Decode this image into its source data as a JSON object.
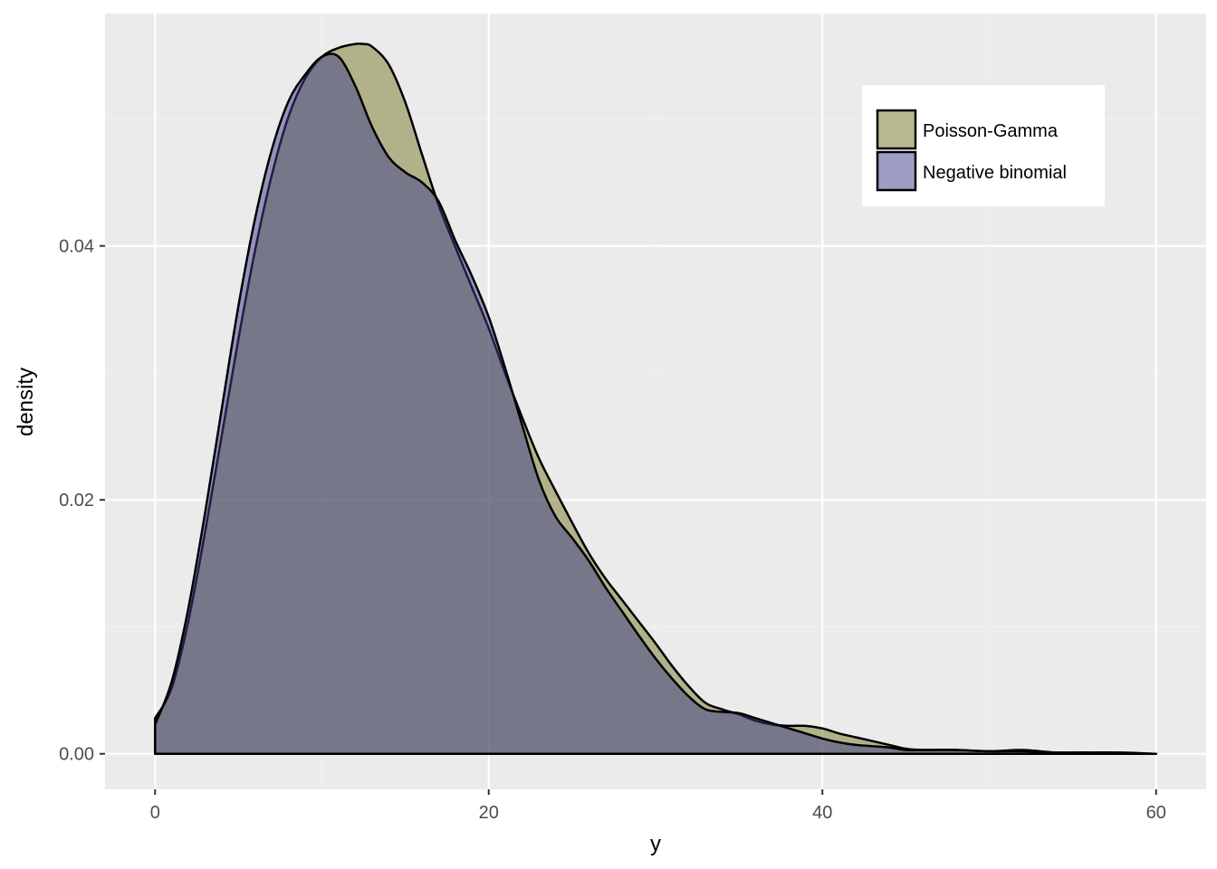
{
  "chart_data": {
    "type": "area",
    "chart_subtype": "overlapping density plot",
    "xlabel": "y",
    "ylabel": "density",
    "xlim": [
      -3,
      63
    ],
    "ylim": [
      -0.0028,
      0.0583
    ],
    "x_ticks": [
      0,
      20,
      40,
      60
    ],
    "y_ticks": [
      0.0,
      0.02,
      0.04
    ],
    "x_tick_labels": [
      "0",
      "20",
      "40",
      "60"
    ],
    "y_tick_labels": [
      "0.00",
      "0.02",
      "0.04"
    ],
    "grid": true,
    "legend_position": "top-right",
    "background": "#EBEBEB",
    "series": [
      {
        "name": "Poisson-Gamma",
        "fill": "#8C8C4A",
        "fill_opacity": 0.6,
        "x": [
          0,
          1,
          2,
          3,
          4,
          5,
          6,
          7,
          8,
          9,
          10,
          11,
          12,
          12.5,
          13,
          14,
          15,
          16,
          17,
          18,
          19,
          20,
          21,
          22,
          23,
          24,
          25,
          26,
          27,
          28,
          29,
          30,
          31,
          32,
          33,
          34,
          35,
          36,
          37,
          38,
          39,
          40,
          41,
          42,
          43,
          44,
          45,
          46,
          48,
          50,
          52,
          54,
          56,
          58,
          60
        ],
        "values": [
          0.0028,
          0.0052,
          0.0105,
          0.0175,
          0.0251,
          0.0327,
          0.0397,
          0.0456,
          0.0502,
          0.0532,
          0.0549,
          0.0556,
          0.0559,
          0.0559,
          0.0557,
          0.0543,
          0.0513,
          0.0472,
          0.0432,
          0.0399,
          0.0367,
          0.0335,
          0.0299,
          0.0265,
          0.0233,
          0.0207,
          0.0182,
          0.0158,
          0.0138,
          0.0121,
          0.0104,
          0.0087,
          0.0069,
          0.0053,
          0.004,
          0.0035,
          0.0031,
          0.0026,
          0.0023,
          0.0022,
          0.0022,
          0.002,
          0.0016,
          0.0013,
          0.001,
          0.0007,
          0.0004,
          0.0003,
          0.0003,
          0.0002,
          0.0003,
          0.0001,
          0.0001,
          0.0001,
          0.0
        ]
      },
      {
        "name": "Negative binomial",
        "fill": "#3B3B8A",
        "fill_opacity": 0.5,
        "x": [
          0,
          1,
          2,
          3,
          4,
          5,
          6,
          7,
          8,
          9,
          10,
          11,
          12,
          13,
          14,
          15,
          16,
          17,
          18,
          19,
          20,
          21,
          22,
          23,
          24,
          25,
          26,
          27,
          28,
          29,
          30,
          31,
          32,
          33,
          34,
          35,
          36,
          37,
          38,
          39,
          40,
          41,
          42,
          43,
          44,
          45,
          46,
          48,
          50,
          52,
          54,
          56,
          58,
          60
        ],
        "values": [
          0.0023,
          0.0057,
          0.0115,
          0.019,
          0.0272,
          0.0353,
          0.0422,
          0.0476,
          0.0514,
          0.0535,
          0.0549,
          0.0549,
          0.0526,
          0.0494,
          0.047,
          0.0458,
          0.045,
          0.0435,
          0.0404,
          0.0376,
          0.0344,
          0.0303,
          0.0259,
          0.0216,
          0.0187,
          0.017,
          0.0152,
          0.0131,
          0.0112,
          0.0093,
          0.0075,
          0.0059,
          0.0045,
          0.0035,
          0.0033,
          0.0032,
          0.0028,
          0.0024,
          0.002,
          0.0016,
          0.0012,
          0.0009,
          0.0007,
          0.0006,
          0.0005,
          0.0003,
          0.0003,
          0.0003,
          0.0002,
          0.0002,
          0.0001,
          0.0001,
          0.0,
          0.0
        ]
      }
    ]
  }
}
